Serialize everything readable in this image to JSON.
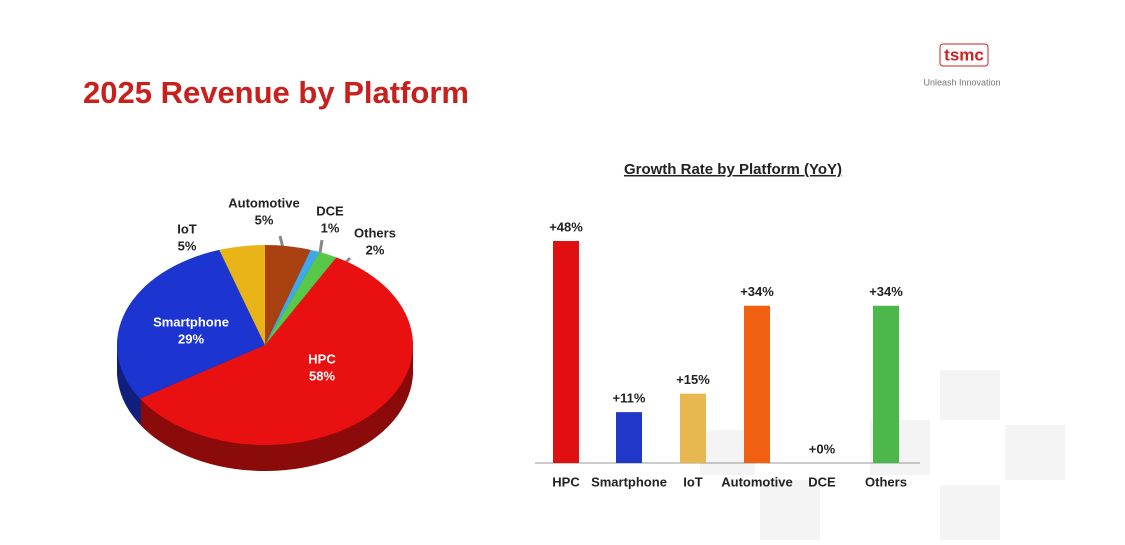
{
  "header": {
    "title": "2025 Revenue by Platform",
    "logo": "tsmc",
    "tagline": "Unleash Innovation"
  },
  "chart_data": [
    {
      "type": "pie",
      "categories": [
        "HPC",
        "Smartphone",
        "IoT",
        "Automotive",
        "DCE",
        "Others"
      ],
      "values": [
        58,
        29,
        5,
        5,
        1,
        2
      ],
      "value_labels": [
        "58%",
        "29%",
        "5%",
        "5%",
        "1%",
        "2%"
      ],
      "colors": [
        "#e81010",
        "#1c34d0",
        "#e8b418",
        "#a84010",
        "#40a8e8",
        "#58c848"
      ]
    },
    {
      "type": "bar",
      "title": "Growth Rate by Platform (YoY)",
      "categories": [
        "HPC",
        "Smartphone",
        "IoT",
        "Automotive",
        "DCE",
        "Others"
      ],
      "values": [
        48,
        11,
        15,
        34,
        0,
        34
      ],
      "value_labels": [
        "+48%",
        "+11%",
        "+15%",
        "+34%",
        "+0%",
        "+34%"
      ],
      "colors": [
        "#e01010",
        "#2038c8",
        "#e8b850",
        "#f06010",
        "#888888",
        "#4cb84c"
      ]
    }
  ]
}
